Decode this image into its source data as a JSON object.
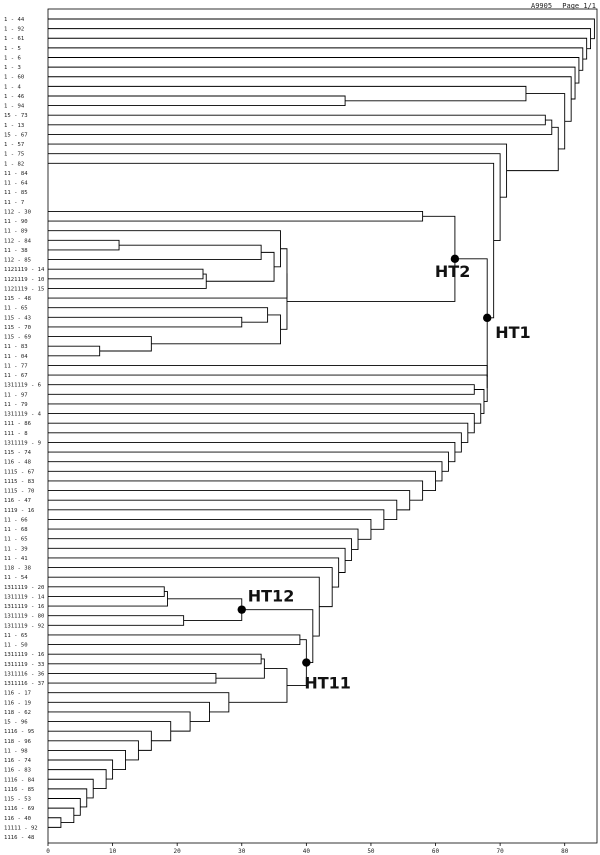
{
  "header": {
    "code": "A9905",
    "page": "Page 1/1"
  },
  "axis": {
    "range": [
      0,
      85
    ],
    "ticks": [
      {
        "value": 0,
        "label": "0"
      },
      {
        "value": 10,
        "label": "10"
      },
      {
        "value": 20,
        "label": "20"
      },
      {
        "value": 30,
        "label": "30"
      },
      {
        "value": 40,
        "label": "40"
      },
      {
        "value": 50,
        "label": "50"
      },
      {
        "value": 60,
        "label": "60"
      },
      {
        "value": 70,
        "label": "70"
      },
      {
        "value": 80,
        "label": "80"
      }
    ]
  },
  "leaves": [
    "1 - 44",
    "1 - 92",
    "1 - 61",
    "1 - 5",
    "1 - 6",
    "1 - 3",
    "1 - 60",
    "1 - 4",
    "1 - 46",
    "1 - 94",
    "15 - 73",
    "1 - 13",
    "15 - 67",
    "1 - 57",
    "1 - 75",
    "1 - 82",
    "11 - 84",
    "11 - 64",
    "11 - 85",
    "11 - 7",
    "112 - 30",
    "11 - 90",
    "11 - 89",
    "112 - 84",
    "11 - 38",
    "112 - 85",
    "1121119 - 14",
    "1121119 - 10",
    "1121119 - 15",
    "115 - 48",
    "11 - 65",
    "115 - 43",
    "115 - 70",
    "115 - 69",
    "11 - 83",
    "11 - 04",
    "11 - 77",
    "11 - 67",
    "1311119 - 6",
    "11 - 97",
    "11 - 79",
    "1311119 - 4",
    "111 - 86",
    "111 - 8",
    "1311119 - 9",
    "115 - 74",
    "116 - 48",
    "1115 - 67",
    "1115 - 83",
    "1115 - 70",
    "116 - 47",
    "1119 - 16",
    "11 - 66",
    "11 - 68",
    "11 - 65",
    "11 - 39",
    "11 - 41",
    "118 - 38",
    "11 - 54",
    "1311119 - 20",
    "1311119 - 14",
    "1311119 - 16",
    "1311119 - 80",
    "1311119 - 92",
    "11 - 65",
    "11 - 50",
    "1311119 - 16",
    "1311119 - 33",
    "1311116 - 36",
    "1311116 - 37",
    "116 - 17",
    "116 - 19",
    "118 - 62",
    "15 - 96",
    "1116 - 95",
    "118 - 96",
    "11 - 98",
    "116 - 74",
    "116 - 83",
    "1116 - 84",
    "1116 - 85",
    "115 - 53",
    "1116 - 69",
    "116 - 40",
    "11111 - 92",
    "1116 - 48"
  ],
  "annotations": [
    {
      "label": "HT2",
      "node": {
        "height": 63,
        "index": 28.3
      }
    },
    {
      "label": "HT1",
      "node": {
        "height": 68,
        "index": 54.5
      }
    },
    {
      "label": "HT12",
      "node": {
        "height": 30,
        "index": 62.3
      }
    },
    {
      "label": "HT11",
      "node": {
        "height": 40,
        "index": 76.0
      }
    }
  ],
  "colors": {
    "line": "#000000",
    "gray": "#9a9a9a",
    "node": "#000000"
  }
}
